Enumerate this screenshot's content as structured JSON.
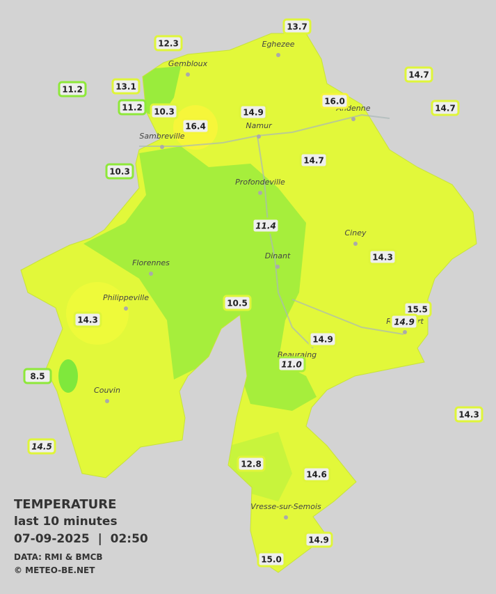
{
  "legend": {
    "title": "TEMPERATURE",
    "period": "last 10 minutes",
    "datetime": "07-09-2025  |  02:50",
    "source": "DATA: RMI & BMCB",
    "copyright": "© METEO-BE.NET"
  },
  "towns": [
    "Eghezee",
    "Gembloux",
    "Andenne",
    "Namur",
    "Sambreville",
    "Profondeville",
    "Ciney",
    "Florennes",
    "Dinant",
    "Philippeville",
    "Rochefort",
    "Beauraing",
    "Couvin",
    "Vresse-sur-Semois"
  ],
  "stations": [
    {
      "value": "13.7",
      "border": "#dff53a",
      "italic": false
    },
    {
      "value": "12.3",
      "border": "#dff53a",
      "italic": false
    },
    {
      "value": "14.7",
      "border": "#dff53a",
      "italic": false
    },
    {
      "value": "11.2",
      "border": "#8ee83a",
      "italic": false
    },
    {
      "value": "13.1",
      "border": "#dff53a",
      "italic": false
    },
    {
      "value": "11.2",
      "border": "#8ee83a",
      "italic": false
    },
    {
      "value": "10.3",
      "border": "#dff53a",
      "italic": false
    },
    {
      "value": "14.9",
      "border": "#dff53a",
      "italic": false
    },
    {
      "value": "16.0",
      "border": "#f4f53a",
      "italic": false
    },
    {
      "value": "14.7",
      "border": "#dff53a",
      "italic": false
    },
    {
      "value": "16.4",
      "border": "#f4f53a",
      "italic": false
    },
    {
      "value": "10.3",
      "border": "#8ee83a",
      "italic": false
    },
    {
      "value": "14.7",
      "border": "#dff53a",
      "italic": false
    },
    {
      "value": "11.4",
      "border": "#a8ee3a",
      "italic": true
    },
    {
      "value": "14.3",
      "border": "#dff53a",
      "italic": false
    },
    {
      "value": "10.5",
      "border": "#dff53a",
      "italic": false
    },
    {
      "value": "15.5",
      "border": "#dff53a",
      "italic": false
    },
    {
      "value": "14.9",
      "border": "#dff53a",
      "italic": true
    },
    {
      "value": "14.3",
      "border": "#dff53a",
      "italic": false
    },
    {
      "value": "14.9",
      "border": "#dff53a",
      "italic": false
    },
    {
      "value": "11.0",
      "border": "#a8ee3a",
      "italic": true
    },
    {
      "value": "8.5",
      "border": "#8ee83a",
      "italic": false
    },
    {
      "value": "14.3",
      "border": "#dff53a",
      "italic": false
    },
    {
      "value": "14.5",
      "border": "#dff53a",
      "italic": true
    },
    {
      "value": "12.8",
      "border": "#dff53a",
      "italic": false
    },
    {
      "value": "14.6",
      "border": "#dff53a",
      "italic": false
    },
    {
      "value": "14.9",
      "border": "#dff53a",
      "italic": false
    },
    {
      "value": "15.0",
      "border": "#dff53a",
      "italic": false
    }
  ]
}
